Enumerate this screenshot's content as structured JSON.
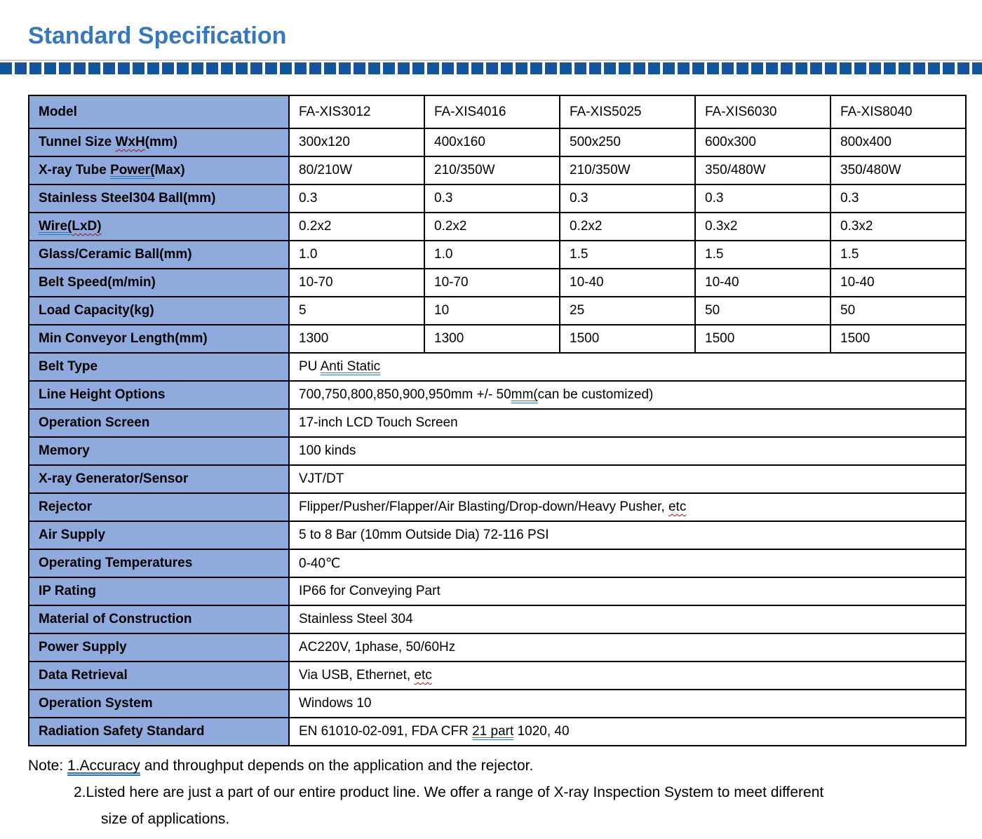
{
  "title": "Standard Specification",
  "colors": {
    "title_blue": "#3478BD",
    "dash_blue": "#1057A0",
    "rule_gray": "#C9CDD1",
    "label_bg": "#8FAADC",
    "grid_border": "#000000",
    "grammar_underline_blue": "#2E75B6",
    "spellcheck_underline_red": "#C00000"
  },
  "table": {
    "header": {
      "label": "Model",
      "models": [
        "FA-XIS3012",
        "FA-XIS4016",
        "FA-XIS5025",
        "FA-XIS6030",
        "FA-XIS8040"
      ]
    },
    "rows": [
      {
        "label": [
          {
            "t": "Tunnel Size "
          },
          {
            "t": "WxH",
            "u": "red"
          },
          {
            "t": "(mm)"
          }
        ],
        "values": [
          "300x120",
          "400x160",
          "500x250",
          "600x300",
          "800x400"
        ]
      },
      {
        "label": [
          {
            "t": "X-ray Tube "
          },
          {
            "t": "Power(",
            "u": "blue"
          },
          {
            "t": "Max)"
          }
        ],
        "values": [
          "80/210W",
          "210/350W",
          "210/350W",
          "350/480W",
          "350/480W"
        ]
      },
      {
        "label": "Stainless Steel304 Ball(mm)",
        "values": [
          "0.3",
          "0.3",
          "0.3",
          "0.3",
          "0.3"
        ]
      },
      {
        "label": [
          {
            "t": "Wire(",
            "u": "blue"
          },
          {
            "t": "LxD)",
            "u": "red"
          }
        ],
        "values": [
          "0.2x2",
          "0.2x2",
          "0.2x2",
          "0.3x2",
          "0.3x2"
        ]
      },
      {
        "label": "Glass/Ceramic Ball(mm)",
        "values": [
          "1.0",
          "1.0",
          "1.5",
          "1.5",
          "1.5"
        ]
      },
      {
        "label": "Belt Speed(m/min)",
        "values": [
          "10-70",
          "10-70",
          "10-40",
          "10-40",
          "10-40"
        ]
      },
      {
        "label": "Load Capacity(kg)",
        "values": [
          "5",
          "10",
          "25",
          "50",
          "50"
        ]
      },
      {
        "label": "Min Conveyor Length(mm)",
        "values": [
          "1300",
          "1300",
          "1500",
          "1500",
          "1500"
        ]
      },
      {
        "label": "Belt Type",
        "span": [
          {
            "t": "PU "
          },
          {
            "t": "Anti Static",
            "u": "blue"
          }
        ]
      },
      {
        "label": "Line Height Options",
        "span": [
          {
            "t": "700,750,800,850,900,950mm +/- 50"
          },
          {
            "t": "mm(",
            "u": "blue"
          },
          {
            "t": "can be customized)"
          }
        ]
      },
      {
        "label": "Operation Screen",
        "span": "17-inch LCD Touch Screen"
      },
      {
        "label": "Memory",
        "span": "100 kinds"
      },
      {
        "label": "X-ray Generator/Sensor",
        "span": "VJT/DT"
      },
      {
        "label": "Rejector",
        "span": [
          {
            "t": "Flipper/Pusher/Flapper/Air Blasting/Drop-down/Heavy Pusher, "
          },
          {
            "t": "etc",
            "u": "red"
          }
        ]
      },
      {
        "label": "Air Supply",
        "span": "5 to 8 Bar (10mm Outside Dia) 72-116 PSI"
      },
      {
        "label": "Operating Temperatures",
        "span": "0-40℃"
      },
      {
        "label": "IP Rating",
        "span": "IP66 for Conveying Part"
      },
      {
        "label": "Material of Construction",
        "span": "Stainless Steel 304"
      },
      {
        "label": "Power Supply",
        "span": "AC220V, 1phase, 50/60Hz"
      },
      {
        "label": "Data Retrieval",
        "span": [
          {
            "t": "Via USB, Ethernet, "
          },
          {
            "t": "etc",
            "u": "red"
          }
        ]
      },
      {
        "label": "Operation System",
        "span": "Windows 10"
      },
      {
        "label": "Radiation Safety Standard",
        "span": [
          {
            "t": "EN 61010-02-091, FDA CFR "
          },
          {
            "t": "21 part",
            "u": "blue"
          },
          {
            "t": " 1020, 40"
          }
        ]
      }
    ]
  },
  "note": {
    "line1": [
      {
        "t": "Note: "
      },
      {
        "t": "1.Accuracy",
        "u": "blue"
      },
      {
        "t": " and throughput depends on the application and the rejector."
      }
    ],
    "line2": "2.Listed here are just a part of our entire product line. We offer a range of X-ray Inspection System to meet different",
    "line3": "size of applications."
  }
}
